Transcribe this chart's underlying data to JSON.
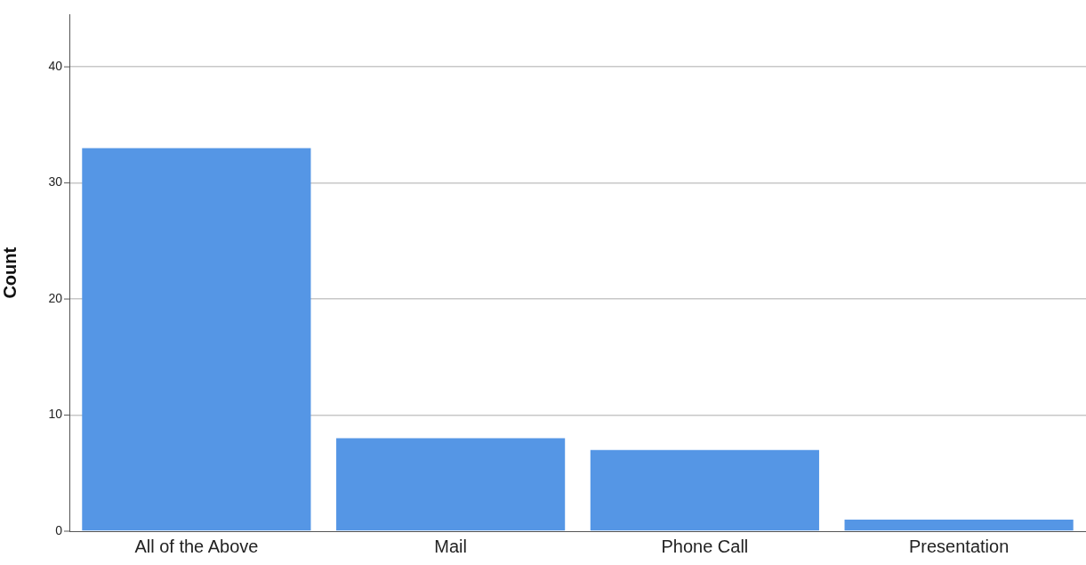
{
  "chart_data": {
    "type": "bar",
    "ylabel": "Count",
    "categories": [
      "All of the Above",
      "Mail",
      "Phone Call",
      "Presentation"
    ],
    "values": [
      33,
      8,
      7,
      1
    ],
    "color": "#5596e5",
    "ylim": [
      0,
      44.5
    ],
    "yticks": [
      0,
      10,
      20,
      30,
      40
    ],
    "grid": "y",
    "legend": false
  }
}
